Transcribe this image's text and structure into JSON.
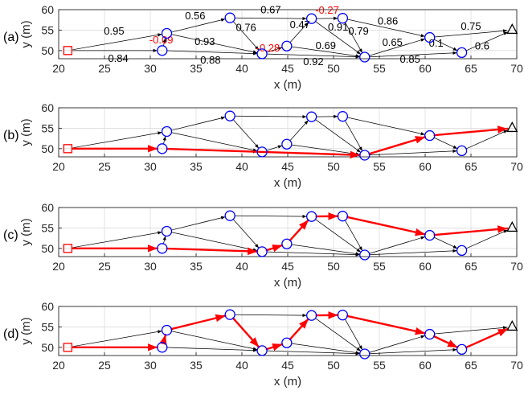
{
  "colors": {
    "edge": "#000000",
    "path": "#ff0000",
    "node": "#0000ff",
    "source": "#ff0000",
    "sink": "#000000",
    "negative_weight": "#ff0000",
    "positive_weight": "#000000",
    "grid": "#dcdcdc"
  },
  "axis_text": {
    "xlabel": "x (m)",
    "ylabel": "y (m)",
    "xticks": [
      "20",
      "25",
      "30",
      "35",
      "40",
      "45",
      "50",
      "55",
      "60",
      "65",
      "70"
    ],
    "yticks": [
      "50",
      "55",
      "60"
    ]
  },
  "chart_data": [
    {
      "type": "scatter",
      "panel": "(a)",
      "xlabel": "x (m)",
      "ylabel": "y (m)",
      "xlim": [
        20,
        70
      ],
      "ylim": [
        48,
        60
      ],
      "grid": true,
      "nodes": [
        {
          "id": "s",
          "x": 21,
          "y": 50,
          "marker": "square"
        },
        {
          "id": "n1",
          "x": 31.3,
          "y": 50,
          "marker": "circle"
        },
        {
          "id": "n2",
          "x": 31.8,
          "y": 54.2,
          "marker": "circle"
        },
        {
          "id": "n3",
          "x": 38.7,
          "y": 58,
          "marker": "circle"
        },
        {
          "id": "n4",
          "x": 42.2,
          "y": 49.2,
          "marker": "circle"
        },
        {
          "id": "n5",
          "x": 44.9,
          "y": 51.1,
          "marker": "circle"
        },
        {
          "id": "n6",
          "x": 47.6,
          "y": 57.8,
          "marker": "circle"
        },
        {
          "id": "n7",
          "x": 51,
          "y": 57.9,
          "marker": "circle"
        },
        {
          "id": "n8",
          "x": 53.4,
          "y": 48.4,
          "marker": "circle"
        },
        {
          "id": "n9",
          "x": 60.5,
          "y": 53.2,
          "marker": "circle"
        },
        {
          "id": "n10",
          "x": 64,
          "y": 49.5,
          "marker": "circle"
        },
        {
          "id": "t",
          "x": 69.5,
          "y": 55,
          "marker": "triangle"
        }
      ],
      "edges": [
        {
          "from": "s",
          "to": "n2",
          "weight": "0.95"
        },
        {
          "from": "s",
          "to": "n1",
          "weight": "0.84"
        },
        {
          "from": "n1",
          "to": "n2",
          "weight": "-0.09"
        },
        {
          "from": "n1",
          "to": "n4",
          "weight": "0.88"
        },
        {
          "from": "n2",
          "to": "n3",
          "weight": "0.56"
        },
        {
          "from": "n2",
          "to": "n4",
          "weight": "0.93"
        },
        {
          "from": "n3",
          "to": "n6",
          "weight": "0.67"
        },
        {
          "from": "n3",
          "to": "n4",
          "weight": "0.76"
        },
        {
          "from": "n4",
          "to": "n5",
          "weight": "-0.28"
        },
        {
          "from": "n4",
          "to": "n8",
          "weight": "0.92"
        },
        {
          "from": "n5",
          "to": "n6",
          "weight": "0.47"
        },
        {
          "from": "n5",
          "to": "n8",
          "weight": "0.69"
        },
        {
          "from": "n6",
          "to": "n7",
          "weight": "-0.27"
        },
        {
          "from": "n6",
          "to": "n8",
          "weight": "0.91"
        },
        {
          "from": "n7",
          "to": "n8",
          "weight": "0.79"
        },
        {
          "from": "n7",
          "to": "n9",
          "weight": "0.86"
        },
        {
          "from": "n8",
          "to": "n9",
          "weight": "0.65"
        },
        {
          "from": "n8",
          "to": "n10",
          "weight": "0.85"
        },
        {
          "from": "n9",
          "to": "n10",
          "weight": "0.1"
        },
        {
          "from": "n9",
          "to": "t",
          "weight": "0.75"
        },
        {
          "from": "n10",
          "to": "t",
          "weight": "0.6"
        }
      ],
      "path": []
    },
    {
      "type": "scatter",
      "panel": "(b)",
      "xlabel": "x (m)",
      "ylabel": "y (m)",
      "xlim": [
        20,
        70
      ],
      "ylim": [
        48,
        60
      ],
      "grid": true,
      "path": [
        "s",
        "n1",
        "n8",
        "n9",
        "t"
      ]
    },
    {
      "type": "scatter",
      "panel": "(c)",
      "xlabel": "x (m)",
      "ylabel": "y (m)",
      "xlim": [
        20,
        70
      ],
      "ylim": [
        48,
        60
      ],
      "grid": true,
      "path": [
        "s",
        "n1",
        "n4",
        "n5",
        "n6",
        "n7",
        "n9",
        "t"
      ]
    },
    {
      "type": "scatter",
      "panel": "(d)",
      "xlabel": "x (m)",
      "ylabel": "y (m)",
      "xlim": [
        20,
        70
      ],
      "ylim": [
        48,
        60
      ],
      "grid": true,
      "path": [
        "s",
        "n1",
        "n2",
        "n3",
        "n4",
        "n5",
        "n6",
        "n7",
        "n9",
        "n10",
        "t"
      ]
    }
  ]
}
